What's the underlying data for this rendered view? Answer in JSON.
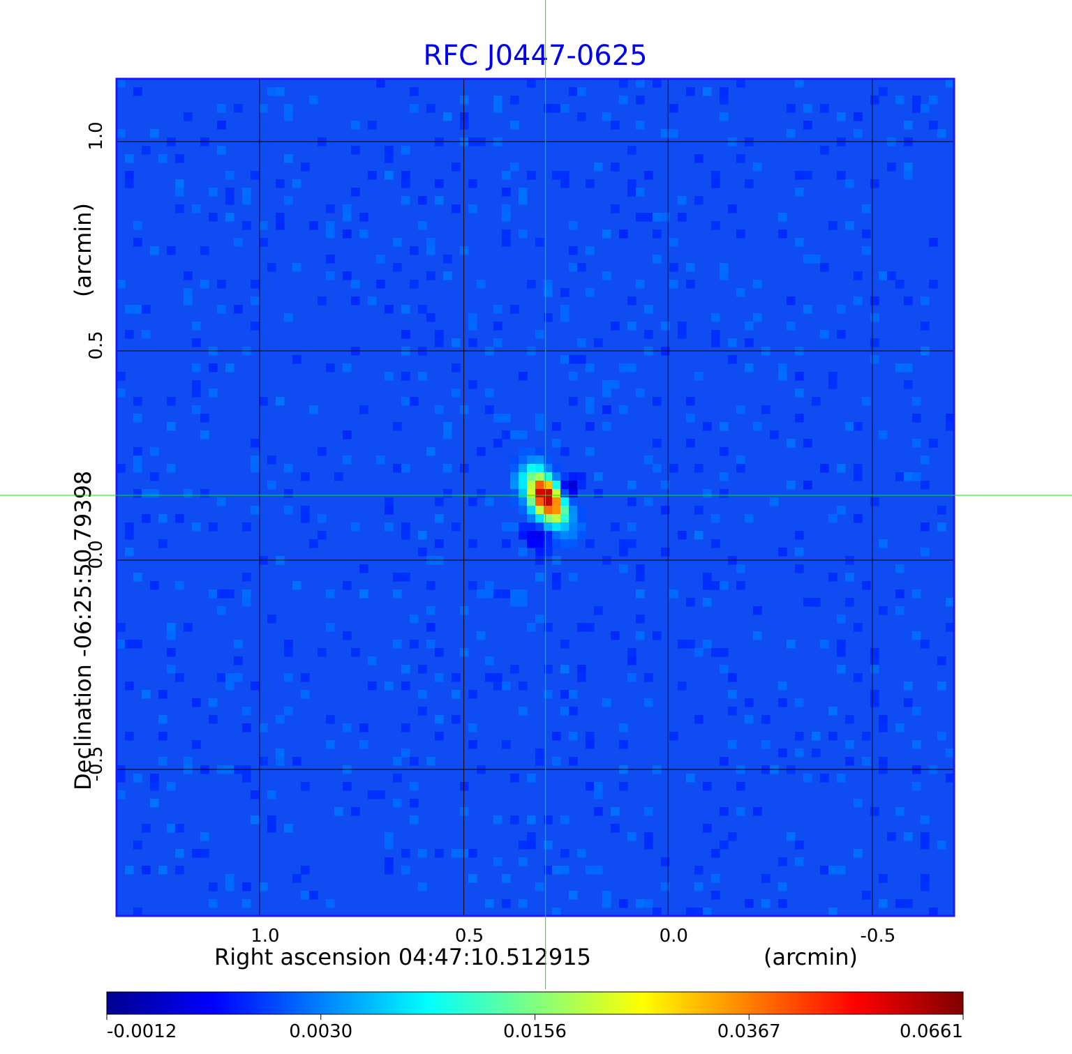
{
  "chart_data": {
    "type": "heatmap",
    "title": "RFC J0447-0625",
    "xlabel_left": "Right ascension  04:47:10.512915",
    "xlabel_right": "(arcmin)",
    "ylabel_left": "Declination  -06:25:50.79398",
    "ylabel_right": "(arcmin)",
    "x_axis": {
      "range": [
        1.35,
        -0.7
      ],
      "ticks": [
        1.0,
        0.5,
        0.0,
        -0.5
      ],
      "tick_labels": [
        "1.0",
        "0.5",
        "0.0",
        "-0.5"
      ],
      "reversed": true
    },
    "y_axis": {
      "range": [
        -0.85,
        1.15
      ],
      "ticks": [
        1.0,
        0.5,
        0.0,
        -0.5
      ],
      "tick_labels": [
        "1.0",
        "0.5",
        "0.0",
        "-0.5"
      ]
    },
    "grid": true,
    "colormap": "jet",
    "colorbar": {
      "placement": "bottom",
      "tick_labels": [
        "-0.0012",
        "0.0030",
        "0.0156",
        "0.0367",
        "0.0661"
      ],
      "values": [
        -0.0012,
        0.003,
        0.0156,
        0.0367,
        0.0661
      ]
    },
    "source": {
      "x": 0.3,
      "y": 0.15,
      "peak": 0.0661
    },
    "crosshair": {
      "x": 0.3,
      "y": 0.155,
      "color": "#00ee00"
    },
    "background_level": 0.0
  }
}
